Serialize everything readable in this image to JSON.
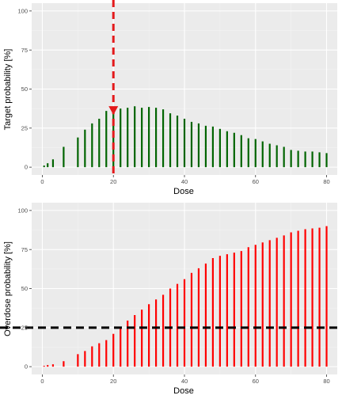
{
  "colors": {
    "panel_bg": "#ebebeb",
    "grid_major": "#ffffff",
    "grid_minor": "#f3f3f3",
    "target_bar": "#006400",
    "overdose_bar": "#ff0000",
    "marker": "#e31a1c",
    "threshold_line": "#000000"
  },
  "chart_data": [
    {
      "type": "bar",
      "xlabel": "Dose",
      "ylabel": "Target probability [%]",
      "xlim": [
        -3,
        83
      ],
      "ylim": [
        -5,
        105
      ],
      "x_ticks": [
        0,
        20,
        40,
        60,
        80
      ],
      "y_ticks": [
        0,
        25,
        50,
        75,
        100
      ],
      "grid": true,
      "x": [
        0.5,
        1.5,
        3,
        6,
        10,
        12,
        14,
        16,
        18,
        20,
        22,
        24,
        26,
        28,
        30,
        32,
        34,
        36,
        38,
        40,
        42,
        44,
        46,
        48,
        50,
        52,
        54,
        56,
        58,
        60,
        62,
        64,
        66,
        68,
        70,
        72,
        74,
        76,
        78,
        80
      ],
      "values": [
        1,
        2.5,
        5,
        13,
        19,
        24,
        28,
        31,
        36,
        37,
        37.5,
        38,
        39,
        38,
        38.5,
        38,
        37,
        34.5,
        33,
        31,
        29,
        28,
        26.5,
        26,
        24.5,
        23,
        22,
        20.5,
        18.5,
        18,
        16.5,
        15,
        14,
        13,
        11,
        10.5,
        10,
        10,
        9.5,
        9
      ],
      "annotations": {
        "vertical_line_x": 20,
        "line_style": "dashed",
        "marker": "downward-triangle",
        "marker_x": 20,
        "marker_y": 36.5
      }
    },
    {
      "type": "bar",
      "xlabel": "Dose",
      "ylabel": "Overdose probability [%]",
      "xlim": [
        -3,
        83
      ],
      "ylim": [
        -5,
        105
      ],
      "x_ticks": [
        0,
        20,
        40,
        60,
        80
      ],
      "y_ticks": [
        0,
        25,
        50,
        75,
        100
      ],
      "grid": true,
      "x": [
        0.5,
        1.5,
        3,
        6,
        10,
        12,
        14,
        16,
        18,
        20,
        22,
        24,
        26,
        28,
        30,
        32,
        34,
        36,
        38,
        40,
        42,
        44,
        46,
        48,
        50,
        52,
        54,
        56,
        58,
        60,
        62,
        64,
        66,
        68,
        70,
        72,
        74,
        76,
        78,
        80
      ],
      "values": [
        0.5,
        1,
        1.5,
        3.5,
        8,
        10,
        13,
        15,
        17,
        21,
        24.5,
        29.5,
        33,
        36.5,
        40,
        43,
        46,
        50,
        53,
        56,
        60,
        63,
        66,
        69.5,
        71,
        72,
        73,
        74,
        76.5,
        78,
        79.5,
        81,
        82.5,
        84,
        86,
        87,
        88,
        88.5,
        89,
        90
      ],
      "annotations": {
        "horizontal_line_y": 25,
        "line_style": "dashed"
      }
    }
  ]
}
